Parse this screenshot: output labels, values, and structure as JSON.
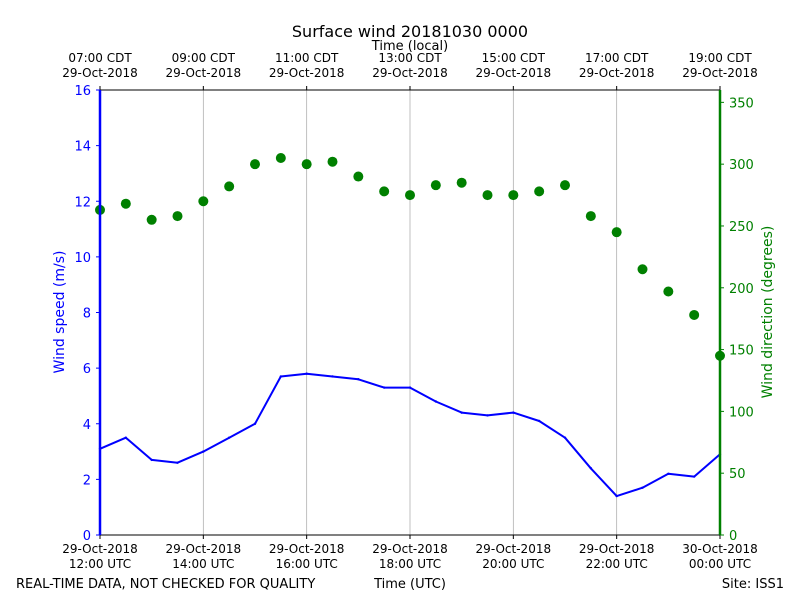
{
  "chart_data": {
    "type": "line",
    "title": "Surface wind 20181030 0000",
    "top_axis": {
      "label": "Time (local)",
      "ticks": [
        {
          "line1": "07:00 CDT",
          "line2": "29-Oct-2018"
        },
        {
          "line1": "09:00 CDT",
          "line2": "29-Oct-2018"
        },
        {
          "line1": "11:00 CDT",
          "line2": "29-Oct-2018"
        },
        {
          "line1": "13:00 CDT",
          "line2": "29-Oct-2018"
        },
        {
          "line1": "15:00 CDT",
          "line2": "29-Oct-2018"
        },
        {
          "line1": "17:00 CDT",
          "line2": "29-Oct-2018"
        },
        {
          "line1": "19:00 CDT",
          "line2": "29-Oct-2018"
        }
      ]
    },
    "bottom_axis": {
      "label": "Time (UTC)",
      "xlim_hours": [
        12,
        24
      ],
      "ticks": [
        {
          "line1": "29-Oct-2018",
          "line2": "12:00 UTC"
        },
        {
          "line1": "29-Oct-2018",
          "line2": "14:00 UTC"
        },
        {
          "line1": "29-Oct-2018",
          "line2": "16:00 UTC"
        },
        {
          "line1": "29-Oct-2018",
          "line2": "18:00 UTC"
        },
        {
          "line1": "29-Oct-2018",
          "line2": "20:00 UTC"
        },
        {
          "line1": "29-Oct-2018",
          "line2": "22:00 UTC"
        },
        {
          "line1": "30-Oct-2018",
          "line2": "00:00 UTC"
        }
      ]
    },
    "left_axis": {
      "label": "Wind speed (m/s)",
      "ylim": [
        0,
        16
      ],
      "ticks": [
        "0",
        "2",
        "4",
        "6",
        "8",
        "10",
        "12",
        "14",
        "16"
      ],
      "color": "#0000ff"
    },
    "right_axis": {
      "label": "Wind direction (degrees)",
      "ylim": [
        0,
        360
      ],
      "ticks": [
        "0",
        "50",
        "100",
        "150",
        "200",
        "250",
        "300",
        "350"
      ],
      "color": "#008000"
    },
    "series": [
      {
        "name": "Wind speed",
        "axis": "left",
        "style": "line",
        "color": "#0000ff",
        "x_hours": [
          12.0,
          12.5,
          13.0,
          13.5,
          14.0,
          14.5,
          15.0,
          15.5,
          16.0,
          16.5,
          17.0,
          17.5,
          18.0,
          18.5,
          19.0,
          19.5,
          20.0,
          20.5,
          21.0,
          21.5,
          22.0,
          22.5,
          23.0,
          23.5,
          24.0
        ],
        "values": [
          3.1,
          3.5,
          2.7,
          2.6,
          3.0,
          3.5,
          4.0,
          5.7,
          5.8,
          5.7,
          5.6,
          5.3,
          5.3,
          4.8,
          4.4,
          4.3,
          4.4,
          4.1,
          3.5,
          2.4,
          1.4,
          1.7,
          2.2,
          2.1,
          2.9
        ]
      },
      {
        "name": "Wind direction",
        "axis": "right",
        "style": "scatter",
        "color": "#008000",
        "x_hours": [
          12.0,
          12.5,
          13.0,
          13.5,
          14.0,
          14.5,
          15.0,
          15.5,
          16.0,
          16.5,
          17.0,
          17.5,
          18.0,
          18.5,
          19.0,
          19.5,
          20.0,
          20.5,
          21.0,
          21.5,
          22.0,
          22.5,
          23.0,
          23.5,
          24.0
        ],
        "values": [
          263,
          268,
          255,
          258,
          270,
          282,
          300,
          305,
          300,
          302,
          290,
          278,
          275,
          283,
          285,
          275,
          275,
          278,
          283,
          258,
          245,
          215,
          197,
          178,
          145
        ]
      }
    ]
  },
  "footer": {
    "left_note": "REAL-TIME DATA, NOT CHECKED FOR QUALITY",
    "right_note": "Site: ISS1"
  }
}
